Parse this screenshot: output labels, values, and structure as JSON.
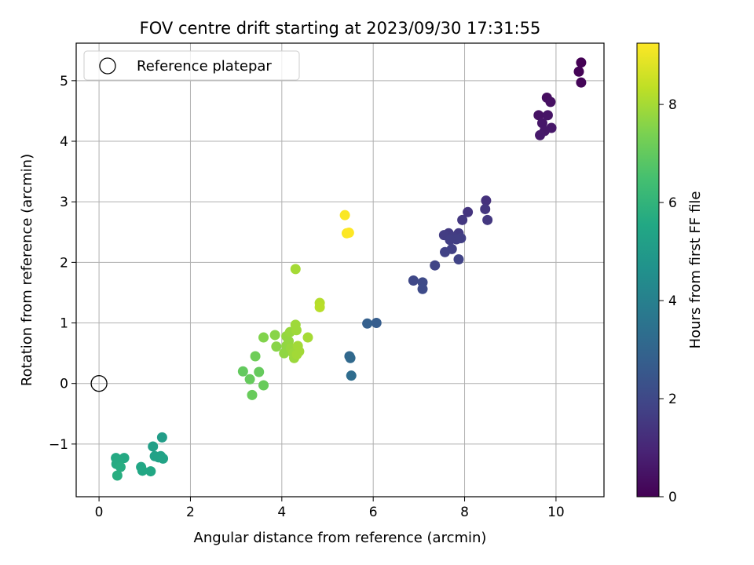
{
  "chart_data": {
    "type": "scatter",
    "title": "FOV centre drift starting at 2023/09/30 17:31:55",
    "xlabel": "Angular distance from reference (arcmin)",
    "ylabel": "Rotation from reference (arcmin)",
    "xlim": [
      -0.5,
      11.05
    ],
    "ylim": [
      -1.87,
      5.62
    ],
    "xticks": [
      0,
      2,
      4,
      6,
      8,
      10
    ],
    "yticks": [
      -1,
      0,
      1,
      2,
      3,
      4,
      5
    ],
    "ytick_labels": [
      "−1",
      "0",
      "1",
      "2",
      "3",
      "4",
      "5"
    ],
    "grid": true,
    "legend": {
      "position": "top-left",
      "entries": [
        "Reference platepar"
      ]
    },
    "reference_point": {
      "x": 0,
      "y": 0
    },
    "colorbar": {
      "label": "Hours from first FF file",
      "range": [
        0,
        9.25
      ],
      "ticks": [
        0,
        2,
        4,
        6,
        8
      ],
      "colormap": "viridis"
    },
    "points": [
      {
        "x": 10.55,
        "y": 5.3,
        "c": 0.0
      },
      {
        "x": 10.5,
        "y": 5.15,
        "c": 0.05
      },
      {
        "x": 10.55,
        "y": 4.97,
        "c": 0.1
      },
      {
        "x": 9.8,
        "y": 4.72,
        "c": 0.35
      },
      {
        "x": 9.88,
        "y": 4.65,
        "c": 0.4
      },
      {
        "x": 9.62,
        "y": 4.43,
        "c": 0.45
      },
      {
        "x": 9.82,
        "y": 4.43,
        "c": 0.5
      },
      {
        "x": 9.7,
        "y": 4.3,
        "c": 0.55
      },
      {
        "x": 9.9,
        "y": 4.22,
        "c": 0.6
      },
      {
        "x": 9.75,
        "y": 4.17,
        "c": 0.6
      },
      {
        "x": 9.65,
        "y": 4.1,
        "c": 0.65
      },
      {
        "x": 8.47,
        "y": 3.02,
        "c": 1.3
      },
      {
        "x": 8.07,
        "y": 2.83,
        "c": 1.4
      },
      {
        "x": 8.45,
        "y": 2.88,
        "c": 1.45
      },
      {
        "x": 7.95,
        "y": 2.7,
        "c": 1.5
      },
      {
        "x": 8.5,
        "y": 2.7,
        "c": 1.5
      },
      {
        "x": 7.65,
        "y": 2.48,
        "c": 1.6
      },
      {
        "x": 7.87,
        "y": 2.48,
        "c": 1.6
      },
      {
        "x": 7.55,
        "y": 2.45,
        "c": 1.65
      },
      {
        "x": 7.75,
        "y": 2.42,
        "c": 1.65
      },
      {
        "x": 7.92,
        "y": 2.4,
        "c": 1.7
      },
      {
        "x": 7.82,
        "y": 2.38,
        "c": 1.7
      },
      {
        "x": 7.68,
        "y": 2.37,
        "c": 1.7
      },
      {
        "x": 7.72,
        "y": 2.22,
        "c": 1.75
      },
      {
        "x": 7.57,
        "y": 2.17,
        "c": 1.8
      },
      {
        "x": 7.87,
        "y": 2.05,
        "c": 1.85
      },
      {
        "x": 7.35,
        "y": 1.95,
        "c": 1.9
      },
      {
        "x": 6.88,
        "y": 1.7,
        "c": 2.0
      },
      {
        "x": 7.08,
        "y": 1.67,
        "c": 2.05
      },
      {
        "x": 7.08,
        "y": 1.56,
        "c": 2.1
      },
      {
        "x": 6.07,
        "y": 1.0,
        "c": 2.7
      },
      {
        "x": 5.87,
        "y": 0.99,
        "c": 2.8
      },
      {
        "x": 5.48,
        "y": 0.45,
        "c": 3.1
      },
      {
        "x": 5.5,
        "y": 0.42,
        "c": 3.15
      },
      {
        "x": 5.52,
        "y": 0.13,
        "c": 3.3
      },
      {
        "x": 1.38,
        "y": -0.89,
        "c": 5.1
      },
      {
        "x": 1.18,
        "y": -1.04,
        "c": 5.2
      },
      {
        "x": 1.22,
        "y": -1.2,
        "c": 5.25
      },
      {
        "x": 1.35,
        "y": -1.2,
        "c": 5.3
      },
      {
        "x": 1.3,
        "y": -1.22,
        "c": 5.3
      },
      {
        "x": 1.4,
        "y": -1.24,
        "c": 5.35
      },
      {
        "x": 0.92,
        "y": -1.38,
        "c": 5.45
      },
      {
        "x": 0.95,
        "y": -1.44,
        "c": 5.5
      },
      {
        "x": 1.13,
        "y": -1.45,
        "c": 5.5
      },
      {
        "x": 0.37,
        "y": -1.23,
        "c": 5.6
      },
      {
        "x": 0.55,
        "y": -1.23,
        "c": 5.6
      },
      {
        "x": 0.42,
        "y": -1.28,
        "c": 5.65
      },
      {
        "x": 0.38,
        "y": -1.33,
        "c": 5.65
      },
      {
        "x": 0.47,
        "y": -1.38,
        "c": 5.7
      },
      {
        "x": 0.4,
        "y": -1.52,
        "c": 5.75
      },
      {
        "x": 3.15,
        "y": 0.2,
        "c": 7.0
      },
      {
        "x": 3.5,
        "y": 0.19,
        "c": 7.05
      },
      {
        "x": 3.3,
        "y": 0.07,
        "c": 7.05
      },
      {
        "x": 3.6,
        "y": -0.03,
        "c": 7.1
      },
      {
        "x": 3.35,
        "y": -0.19,
        "c": 7.1
      },
      {
        "x": 3.42,
        "y": 0.45,
        "c": 7.2
      },
      {
        "x": 3.6,
        "y": 0.76,
        "c": 7.5
      },
      {
        "x": 3.85,
        "y": 0.8,
        "c": 7.6
      },
      {
        "x": 3.88,
        "y": 0.61,
        "c": 7.6
      },
      {
        "x": 4.05,
        "y": 0.5,
        "c": 7.7
      },
      {
        "x": 4.1,
        "y": 0.62,
        "c": 7.7
      },
      {
        "x": 4.1,
        "y": 0.78,
        "c": 7.75
      },
      {
        "x": 4.15,
        "y": 0.7,
        "c": 7.75
      },
      {
        "x": 4.18,
        "y": 0.85,
        "c": 7.8
      },
      {
        "x": 4.2,
        "y": 0.58,
        "c": 7.8
      },
      {
        "x": 4.25,
        "y": 0.5,
        "c": 7.85
      },
      {
        "x": 4.27,
        "y": 0.42,
        "c": 7.85
      },
      {
        "x": 4.3,
        "y": 0.97,
        "c": 7.9
      },
      {
        "x": 4.32,
        "y": 0.88,
        "c": 7.9
      },
      {
        "x": 4.35,
        "y": 0.62,
        "c": 7.95
      },
      {
        "x": 4.38,
        "y": 0.53,
        "c": 7.95
      },
      {
        "x": 4.33,
        "y": 0.48,
        "c": 7.95
      },
      {
        "x": 4.57,
        "y": 0.76,
        "c": 8.0
      },
      {
        "x": 4.3,
        "y": 1.89,
        "c": 8.0
      },
      {
        "x": 4.83,
        "y": 1.33,
        "c": 8.2
      },
      {
        "x": 4.83,
        "y": 1.26,
        "c": 8.25
      },
      {
        "x": 5.38,
        "y": 2.78,
        "c": 9.2
      },
      {
        "x": 5.42,
        "y": 2.48,
        "c": 9.2
      },
      {
        "x": 5.47,
        "y": 2.49,
        "c": 9.25
      }
    ]
  }
}
